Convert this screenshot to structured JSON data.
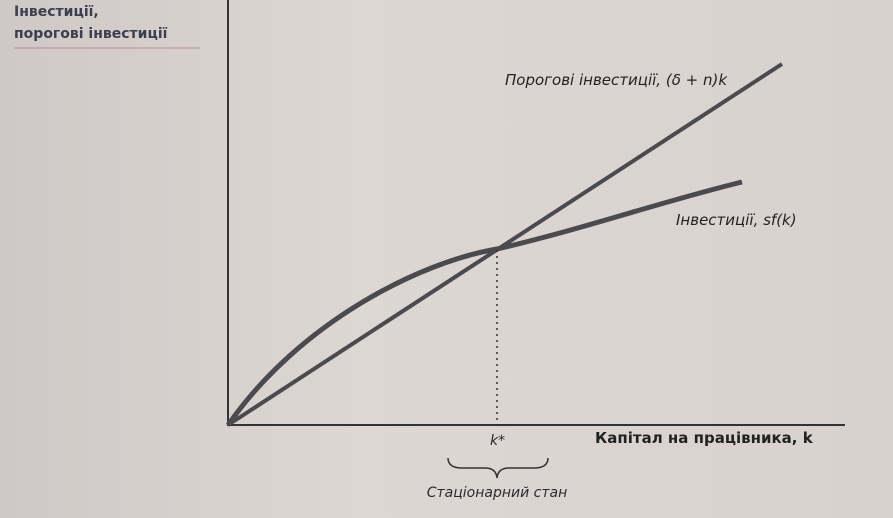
{
  "y_axis_label": [
    "Інвестиції,",
    "порогові інвестиції"
  ],
  "break_even_label": "Порогові інвестиції, (δ + n)k",
  "investment_label": "Інвестиції, sf(k)",
  "steady_state_k": "k*",
  "x_axis_label": "Капітал на працівника, k",
  "steady_state_label": "Стаціонарний стан"
}
